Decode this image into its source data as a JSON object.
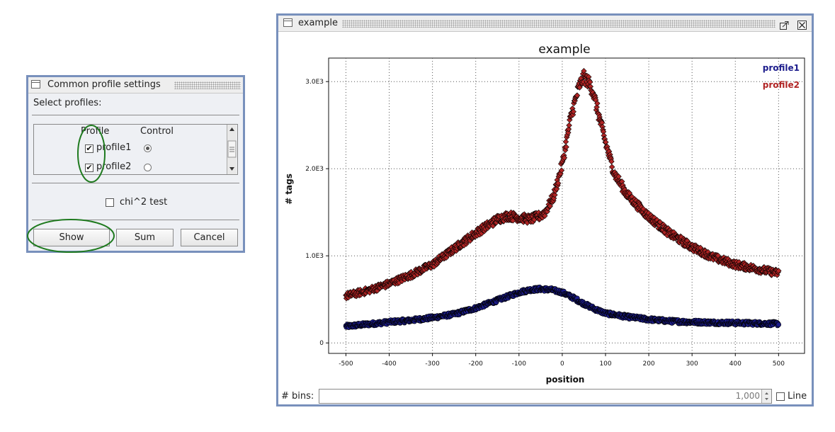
{
  "settings_window": {
    "title": "Common profile settings",
    "select_label": "Select profiles:",
    "col_profile": "Profile",
    "col_control": "Control",
    "rows": [
      {
        "name": "profile1",
        "checked": true,
        "control": true
      },
      {
        "name": "profile2",
        "checked": true,
        "control": false
      }
    ],
    "chi_label": "chi^2 test",
    "chi_checked": false,
    "buttons": {
      "show": "Show",
      "sum": "Sum",
      "cancel": "Cancel"
    }
  },
  "plot_window": {
    "title": "example",
    "bins_label": "# bins:",
    "bins_value": "1,000",
    "line_label": "Line",
    "line_checked": false
  },
  "chart_data": {
    "type": "scatter",
    "title": "example",
    "xlabel": "position",
    "ylabel": "# tags",
    "xlim": [
      -540,
      560
    ],
    "ylim": [
      -120,
      3270
    ],
    "x_ticks": [
      -500,
      -400,
      -300,
      -200,
      -100,
      0,
      100,
      200,
      300,
      400,
      500
    ],
    "x_tick_labels": [
      "-500",
      "-400",
      "-300",
      "-200",
      "-100",
      "0",
      "100",
      "200",
      "300",
      "400",
      "500"
    ],
    "y_ticks": [
      0,
      1000,
      2000,
      3000
    ],
    "y_tick_labels": [
      "0",
      "1.0E3",
      "2.0E3",
      "3.0E3"
    ],
    "grid": true,
    "legend_position": "top-right",
    "series": [
      {
        "name": "profile1",
        "color": "#1c1c8c",
        "marker": "circle",
        "x": [
          -500,
          -450,
          -400,
          -350,
          -300,
          -250,
          -200,
          -150,
          -100,
          -75,
          -50,
          -25,
          0,
          25,
          50,
          75,
          100,
          150,
          200,
          250,
          300,
          350,
          400,
          450,
          500
        ],
        "y": [
          190,
          215,
          240,
          260,
          290,
          330,
          400,
          490,
          580,
          610,
          620,
          610,
          580,
          520,
          450,
          390,
          340,
          300,
          270,
          250,
          240,
          235,
          230,
          225,
          220
        ]
      },
      {
        "name": "profile2",
        "color": "#b02424",
        "marker": "diamond",
        "x": [
          -500,
          -450,
          -400,
          -350,
          -300,
          -250,
          -200,
          -150,
          -125,
          -100,
          -75,
          -50,
          -40,
          -20,
          0,
          20,
          40,
          50,
          60,
          70,
          80,
          100,
          120,
          150,
          200,
          250,
          300,
          350,
          400,
          450,
          500
        ],
        "y": [
          540,
          600,
          680,
          780,
          900,
          1080,
          1260,
          1420,
          1460,
          1440,
          1420,
          1460,
          1500,
          1680,
          2050,
          2600,
          2960,
          3050,
          3000,
          2900,
          2700,
          2300,
          1950,
          1700,
          1450,
          1250,
          1100,
          980,
          900,
          850,
          800
        ]
      }
    ]
  }
}
